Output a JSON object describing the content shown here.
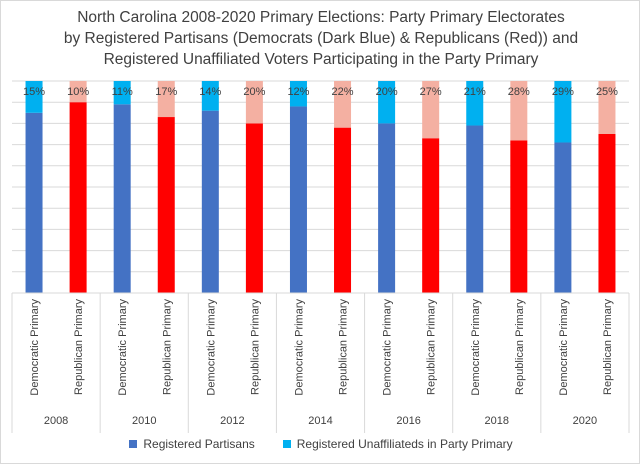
{
  "chart_data": {
    "type": "bar",
    "stacked": true,
    "normalized": true,
    "title_lines": [
      "North Carolina 2008-2020 Primary Elections: Party Primary Electorates",
      "by Registered Partisans (Democrats (Dark Blue) & Republicans (Red)) and",
      "Registered Unaffiliated Voters Participating in the Party Primary"
    ],
    "years": [
      "2008",
      "2010",
      "2012",
      "2014",
      "2016",
      "2018",
      "2020"
    ],
    "primaries": [
      "Democratic Primary",
      "Republican Primary"
    ],
    "ylim": [
      0,
      100
    ],
    "grid": true,
    "series": [
      {
        "name": "Registered Partisans",
        "democratic_values": [
          85,
          89,
          86,
          88,
          80,
          79,
          71
        ],
        "republican_values": [
          90,
          83,
          80,
          78,
          73,
          72,
          75
        ]
      },
      {
        "name": "Registered Unaffiliateds in Party Primary",
        "democratic_values": [
          15,
          11,
          14,
          12,
          20,
          21,
          29
        ],
        "republican_values": [
          10,
          17,
          20,
          22,
          27,
          28,
          25
        ]
      }
    ],
    "data_labels": {
      "democratic": [
        "15%",
        "11%",
        "14%",
        "12%",
        "20%",
        "21%",
        "29%"
      ],
      "republican": [
        "10%",
        "17%",
        "20%",
        "22%",
        "27%",
        "28%",
        "25%"
      ]
    },
    "colors": {
      "dem_partisan": "#4472c4",
      "dem_unaffiliated": "#00b0f0",
      "rep_partisan": "#ff0000",
      "rep_unaffiliated": "#f4b0a2",
      "grid": "#d9d9d9",
      "text": "#404040"
    },
    "legend": {
      "position": "bottom",
      "items": [
        {
          "label": "Registered Partisans",
          "color": "#4472c4"
        },
        {
          "label": "Registered Unaffiliateds in Party Primary",
          "color": "#00b0f0"
        }
      ]
    }
  }
}
